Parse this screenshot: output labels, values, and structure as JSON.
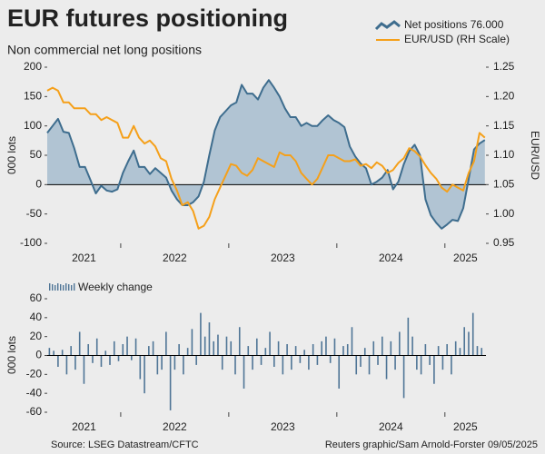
{
  "chart_data": [
    {
      "type": "area",
      "title": "EUR futures positioning",
      "subtitle": "Non commercial net long positions",
      "ylabel": "000 lots",
      "y2label": "EUR/USD",
      "x": [
        2021.32,
        2021.37,
        2021.42,
        2021.47,
        2021.52,
        2021.57,
        2021.62,
        2021.67,
        2021.72,
        2021.77,
        2021.82,
        2021.87,
        2021.92,
        2021.97,
        2022.02,
        2022.07,
        2022.12,
        2022.17,
        2022.22,
        2022.27,
        2022.32,
        2022.37,
        2022.42,
        2022.47,
        2022.52,
        2022.57,
        2022.62,
        2022.67,
        2022.72,
        2022.77,
        2022.82,
        2022.87,
        2022.92,
        2022.97,
        2023.02,
        2023.07,
        2023.12,
        2023.17,
        2023.22,
        2023.27,
        2023.32,
        2023.37,
        2023.42,
        2023.47,
        2023.52,
        2023.57,
        2023.62,
        2023.67,
        2023.72,
        2023.77,
        2023.82,
        2023.87,
        2023.92,
        2023.97,
        2024.02,
        2024.07,
        2024.12,
        2024.17,
        2024.22,
        2024.27,
        2024.32,
        2024.37,
        2024.42,
        2024.47,
        2024.52,
        2024.57,
        2024.62,
        2024.67,
        2024.72,
        2024.77,
        2024.82,
        2024.87,
        2024.92,
        2024.97,
        2025.02,
        2025.07,
        2025.12,
        2025.17,
        2025.22,
        2025.27,
        2025.32,
        2025.37
      ],
      "xlim": [
        2021.32,
        2025.38
      ],
      "xticks": [
        2021,
        2022,
        2023,
        2024,
        2025
      ],
      "ylim": [
        -100,
        200
      ],
      "yticks": [
        -100,
        -50,
        0,
        50,
        100,
        150,
        200
      ],
      "y2lim": [
        0.95,
        1.25
      ],
      "y2ticks": [
        0.95,
        {
          "value": 1,
          "label": "1.00"
        },
        1.05,
        {
          "value": 1.1,
          "label": "1.10"
        },
        1.15,
        {
          "value": 1.2,
          "label": "1.20"
        },
        1.25
      ],
      "series": [
        {
          "name": "Net positions 76.000",
          "color": "#3e6d8e",
          "fill": "#b1c4d3",
          "values": [
            88,
            100,
            112,
            90,
            88,
            62,
            30,
            30,
            8,
            -15,
            -2,
            -10,
            -12,
            -8,
            20,
            40,
            58,
            30,
            30,
            18,
            28,
            20,
            12,
            -10,
            -25,
            -35,
            -35,
            -30,
            -20,
            5,
            50,
            92,
            115,
            125,
            135,
            140,
            170,
            155,
            155,
            145,
            165,
            178,
            165,
            150,
            130,
            115,
            115,
            100,
            105,
            100,
            100,
            110,
            118,
            110,
            105,
            98,
            65,
            48,
            36,
            28,
            0,
            5,
            12,
            25,
            -8,
            5,
            35,
            57,
            68,
            50,
            -25,
            -52,
            -65,
            -75,
            -68,
            -60,
            -62,
            -40,
            10,
            60,
            70,
            76
          ]
        },
        {
          "name": "EUR/USD (RH Scale)",
          "color": "#f5a01a",
          "axis": "y2",
          "values": [
            1.21,
            1.215,
            1.21,
            1.19,
            1.19,
            1.18,
            1.18,
            1.18,
            1.17,
            1.17,
            1.16,
            1.165,
            1.16,
            1.155,
            1.13,
            1.13,
            1.15,
            1.13,
            1.12,
            1.125,
            1.115,
            1.095,
            1.09,
            1.06,
            1.04,
            1.015,
            1.02,
            1.005,
            0.975,
            0.98,
            0.995,
            1.025,
            1.045,
            1.065,
            1.085,
            1.082,
            1.07,
            1.065,
            1.075,
            1.095,
            1.09,
            1.085,
            1.08,
            1.105,
            1.1,
            1.1,
            1.09,
            1.07,
            1.06,
            1.05,
            1.06,
            1.08,
            1.1,
            1.1,
            1.095,
            1.09,
            1.09,
            1.093,
            1.082,
            1.085,
            1.078,
            1.088,
            1.082,
            1.07,
            1.075,
            1.087,
            1.095,
            1.112,
            1.107,
            1.098,
            1.083,
            1.07,
            1.06,
            1.045,
            1.038,
            1.05,
            1.045,
            1.04,
            1.07,
            1.09,
            1.138,
            1.13
          ]
        }
      ]
    },
    {
      "type": "bar",
      "ylabel": "000 lots",
      "x": [
        2021.34,
        2021.38,
        2021.42,
        2021.46,
        2021.5,
        2021.54,
        2021.58,
        2021.62,
        2021.66,
        2021.7,
        2021.74,
        2021.78,
        2021.82,
        2021.86,
        2021.9,
        2021.94,
        2021.98,
        2022.02,
        2022.06,
        2022.1,
        2022.14,
        2022.18,
        2022.22,
        2022.26,
        2022.3,
        2022.34,
        2022.38,
        2022.42,
        2022.46,
        2022.5,
        2022.54,
        2022.58,
        2022.62,
        2022.66,
        2022.7,
        2022.74,
        2022.78,
        2022.82,
        2022.86,
        2022.9,
        2022.94,
        2022.98,
        2023.02,
        2023.06,
        2023.1,
        2023.14,
        2023.18,
        2023.22,
        2023.26,
        2023.3,
        2023.34,
        2023.38,
        2023.42,
        2023.46,
        2023.5,
        2023.54,
        2023.58,
        2023.62,
        2023.66,
        2023.7,
        2023.74,
        2023.78,
        2023.82,
        2023.86,
        2023.9,
        2023.94,
        2023.98,
        2024.02,
        2024.06,
        2024.1,
        2024.14,
        2024.18,
        2024.22,
        2024.26,
        2024.3,
        2024.34,
        2024.38,
        2024.42,
        2024.46,
        2024.5,
        2024.54,
        2024.58,
        2024.62,
        2024.66,
        2024.7,
        2024.74,
        2024.78,
        2024.82,
        2024.86,
        2024.9,
        2024.94,
        2024.98,
        2025.02,
        2025.06,
        2025.1,
        2025.14,
        2025.18,
        2025.22,
        2025.26,
        2025.3,
        2025.34
      ],
      "xlim": [
        2021.32,
        2025.38
      ],
      "xticks": [
        2021,
        2022,
        2023,
        2024,
        2025
      ],
      "ylim": [
        -60,
        60
      ],
      "yticks": [
        -60,
        -40,
        -20,
        0,
        20,
        40,
        60
      ],
      "series": [
        {
          "name": "Weekly change",
          "color": "#4f7596",
          "values": [
            8,
            5,
            -12,
            6,
            -20,
            10,
            -15,
            25,
            -30,
            12,
            -8,
            18,
            -12,
            5,
            -10,
            15,
            -6,
            12,
            20,
            -5,
            18,
            -25,
            -40,
            10,
            15,
            -20,
            -15,
            25,
            -58,
            -15,
            12,
            -20,
            8,
            28,
            -10,
            45,
            20,
            35,
            15,
            22,
            -15,
            20,
            15,
            -20,
            30,
            -35,
            10,
            -15,
            18,
            -10,
            8,
            25,
            -12,
            15,
            -20,
            12,
            -15,
            10,
            -8,
            6,
            -15,
            12,
            -10,
            15,
            20,
            -8,
            18,
            -35,
            10,
            12,
            30,
            -20,
            -12,
            8,
            -20,
            15,
            -10,
            20,
            -25,
            15,
            -15,
            25,
            -45,
            40,
            20,
            -15,
            -20,
            12,
            -10,
            -30,
            10,
            -15,
            12,
            -20,
            15,
            8,
            30,
            25,
            45,
            10,
            8
          ]
        }
      ]
    }
  ],
  "footer": {
    "source": "Source: LSEG Datastream/CFTC",
    "credit": "Reuters graphic/Sam Arnold-Forster 09/05/2025"
  }
}
